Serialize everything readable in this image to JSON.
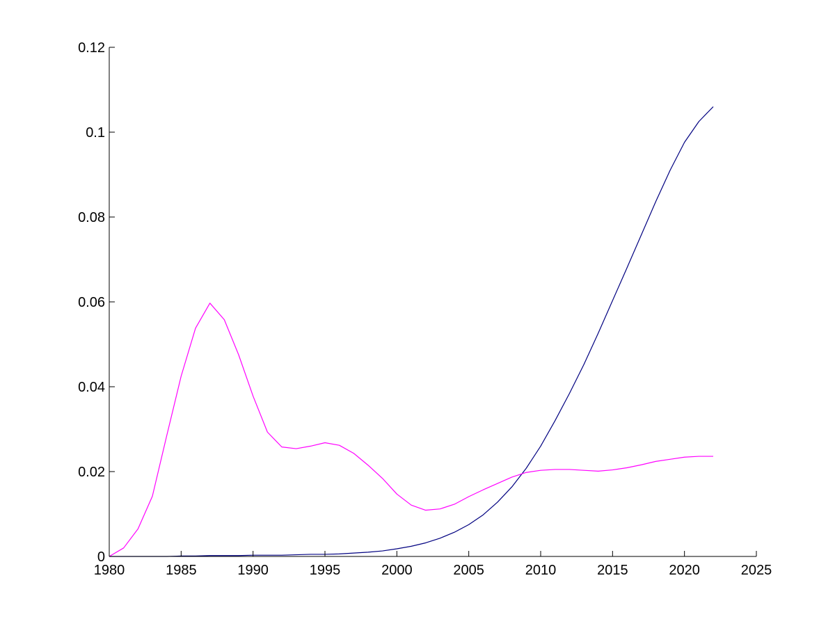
{
  "chart_data": {
    "type": "line",
    "title": "",
    "xlabel": "",
    "ylabel": "",
    "xlim": [
      1980,
      2025
    ],
    "ylim": [
      0,
      0.12
    ],
    "grid": false,
    "legend": "none",
    "x_ticks": [
      1980,
      1985,
      1990,
      1995,
      2000,
      2005,
      2010,
      2015,
      2020,
      2025
    ],
    "x_tick_labels": [
      "1980",
      "1985",
      "1990",
      "1995",
      "2000",
      "2005",
      "2010",
      "2015",
      "2020",
      "2025"
    ],
    "y_ticks": [
      0,
      0.02,
      0.04,
      0.06,
      0.08,
      0.1,
      0.12
    ],
    "y_tick_labels": [
      "0",
      "0.02",
      "0.04",
      "0.06",
      "0.08",
      "0.1",
      "0.12"
    ],
    "series": [
      {
        "color": "#000080",
        "x": [
          1980,
          1981,
          1982,
          1983,
          1984,
          1985,
          1986,
          1987,
          1988,
          1989,
          1990,
          1991,
          1992,
          1993,
          1994,
          1995,
          1996,
          1997,
          1998,
          1999,
          2000,
          2001,
          2002,
          2003,
          2004,
          2005,
          2006,
          2007,
          2008,
          2009,
          2010,
          2011,
          2012,
          2013,
          2014,
          2015,
          2016,
          2017,
          2018,
          2019,
          2020,
          2021,
          2022
        ],
        "values": [
          0,
          0,
          0,
          0,
          0,
          0.0001,
          0.0001,
          0.0002,
          0.0002,
          0.0002,
          0.0003,
          0.0003,
          0.0003,
          0.0004,
          0.0005,
          0.0005,
          0.0006,
          0.0008,
          0.001,
          0.0013,
          0.0018,
          0.0024,
          0.0032,
          0.0043,
          0.0057,
          0.0075,
          0.0098,
          0.0128,
          0.0164,
          0.0208,
          0.026,
          0.032,
          0.0384,
          0.0452,
          0.0526,
          0.0603,
          0.068,
          0.0758,
          0.0836,
          0.091,
          0.0976,
          0.1025,
          0.106
        ]
      },
      {
        "color": "#ff00ff",
        "x": [
          1980,
          1981,
          1982,
          1983,
          1984,
          1985,
          1986,
          1987,
          1988,
          1989,
          1990,
          1991,
          1992,
          1993,
          1994,
          1995,
          1996,
          1997,
          1998,
          1999,
          2000,
          2001,
          2002,
          2003,
          2004,
          2005,
          2006,
          2007,
          2008,
          2009,
          2010,
          2011,
          2012,
          2013,
          2014,
          2015,
          2016,
          2017,
          2018,
          2019,
          2020,
          2021,
          2022
        ],
        "values": [
          0,
          0.002,
          0.0065,
          0.0142,
          0.0285,
          0.0425,
          0.0538,
          0.0597,
          0.0558,
          0.0475,
          0.0378,
          0.0293,
          0.0258,
          0.0254,
          0.026,
          0.0268,
          0.0262,
          0.0243,
          0.0215,
          0.0184,
          0.0147,
          0.0121,
          0.0109,
          0.0112,
          0.0123,
          0.0141,
          0.0157,
          0.0172,
          0.0187,
          0.0198,
          0.0203,
          0.0205,
          0.0205,
          0.0203,
          0.0201,
          0.0204,
          0.0209,
          0.0216,
          0.0224,
          0.0229,
          0.0234,
          0.0236,
          0.0236
        ]
      }
    ]
  }
}
